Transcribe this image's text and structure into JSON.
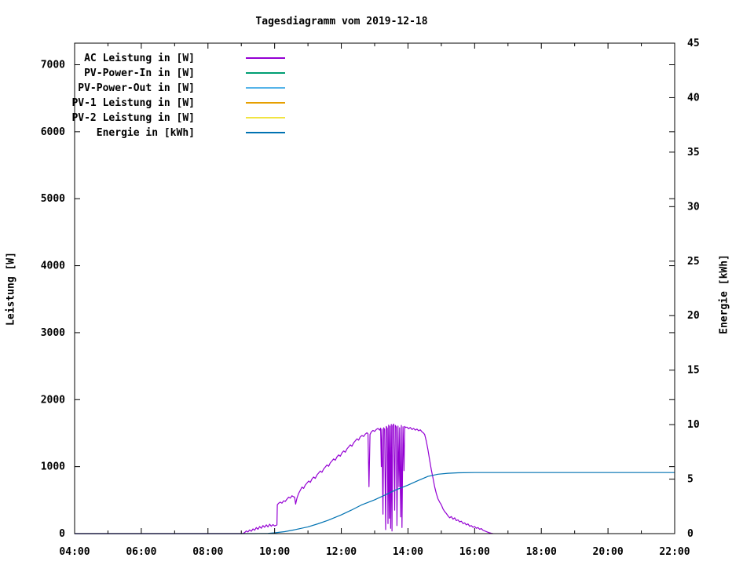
{
  "chart_data": {
    "type": "line",
    "title": "Tagesdiagramm vom 2019-12-18",
    "grid": false,
    "legend_position": "inside-top-left",
    "x_axis": {
      "min_hour": 4,
      "max_hour": 22,
      "ticks": [
        {
          "t": 4,
          "label": "04:00"
        },
        {
          "t": 6,
          "label": "06:00"
        },
        {
          "t": 8,
          "label": "08:00"
        },
        {
          "t": 10,
          "label": "10:00"
        },
        {
          "t": 12,
          "label": "12:00"
        },
        {
          "t": 14,
          "label": "14:00"
        },
        {
          "t": 16,
          "label": "16:00"
        },
        {
          "t": 18,
          "label": "18:00"
        },
        {
          "t": 20,
          "label": "20:00"
        },
        {
          "t": 22,
          "label": "22:00"
        }
      ],
      "minor_ticks": [
        5,
        7,
        9,
        11,
        13,
        15,
        17,
        19,
        21
      ]
    },
    "y_left": {
      "label": "Leistung [W]",
      "min": 0,
      "max": 7320,
      "ticks": [
        0,
        1000,
        2000,
        3000,
        4000,
        5000,
        6000,
        7000
      ]
    },
    "y_right": {
      "label": "Energie [kWh]",
      "min": 0,
      "max": 45,
      "ticks": [
        0,
        5,
        10,
        15,
        20,
        25,
        30,
        35,
        40,
        45
      ]
    },
    "legend": [
      {
        "label": "AC Leistung in [W]",
        "color": "#9400d3"
      },
      {
        "label": "PV-Power-In in [W]",
        "color": "#009e73"
      },
      {
        "label": "PV-Power-Out in [W]",
        "color": "#56b4e9"
      },
      {
        "label": "PV-1 Leistung in [W]",
        "color": "#e69f00"
      },
      {
        "label": "PV-2 Leistung in [W]",
        "color": "#f0e442"
      },
      {
        "label": "Energie in [kWh]",
        "color": "#0072b2"
      }
    ],
    "series": [
      {
        "name": "AC Leistung in [W]",
        "slug": "ac-leistung",
        "axis": "left",
        "color": "#9400d3",
        "visible": true,
        "points": [
          [
            4,
            0
          ],
          [
            9.05,
            0
          ],
          [
            9.1,
            15
          ],
          [
            9.15,
            40
          ],
          [
            9.2,
            25
          ],
          [
            9.25,
            55
          ],
          [
            9.3,
            35
          ],
          [
            9.35,
            70
          ],
          [
            9.4,
            50
          ],
          [
            9.45,
            90
          ],
          [
            9.5,
            65
          ],
          [
            9.55,
            105
          ],
          [
            9.6,
            80
          ],
          [
            9.65,
            120
          ],
          [
            9.7,
            95
          ],
          [
            9.75,
            130
          ],
          [
            9.8,
            100
          ],
          [
            9.85,
            140
          ],
          [
            9.9,
            110
          ],
          [
            9.95,
            135
          ],
          [
            10,
            115
          ],
          [
            10.05,
            125
          ],
          [
            10.07,
            130
          ],
          [
            10.08,
            430
          ],
          [
            10.12,
            455
          ],
          [
            10.17,
            470
          ],
          [
            10.22,
            455
          ],
          [
            10.27,
            490
          ],
          [
            10.32,
            480
          ],
          [
            10.37,
            515
          ],
          [
            10.42,
            545
          ],
          [
            10.47,
            530
          ],
          [
            10.52,
            565
          ],
          [
            10.57,
            550
          ],
          [
            10.6,
            545
          ],
          [
            10.63,
            440
          ],
          [
            10.67,
            530
          ],
          [
            10.72,
            600
          ],
          [
            10.77,
            645
          ],
          [
            10.82,
            695
          ],
          [
            10.87,
            675
          ],
          [
            10.92,
            725
          ],
          [
            10.97,
            755
          ],
          [
            11.02,
            785
          ],
          [
            11.07,
            765
          ],
          [
            11.12,
            815
          ],
          [
            11.17,
            845
          ],
          [
            11.22,
            825
          ],
          [
            11.27,
            875
          ],
          [
            11.32,
            905
          ],
          [
            11.37,
            935
          ],
          [
            11.42,
            915
          ],
          [
            11.47,
            965
          ],
          [
            11.52,
            995
          ],
          [
            11.57,
            1025
          ],
          [
            11.62,
            1005
          ],
          [
            11.67,
            1055
          ],
          [
            11.72,
            1085
          ],
          [
            11.77,
            1115
          ],
          [
            11.82,
            1095
          ],
          [
            11.87,
            1145
          ],
          [
            11.92,
            1175
          ],
          [
            11.97,
            1155
          ],
          [
            12.02,
            1205
          ],
          [
            12.07,
            1235
          ],
          [
            12.12,
            1215
          ],
          [
            12.17,
            1265
          ],
          [
            12.22,
            1295
          ],
          [
            12.27,
            1325
          ],
          [
            12.32,
            1305
          ],
          [
            12.37,
            1355
          ],
          [
            12.42,
            1385
          ],
          [
            12.47,
            1415
          ],
          [
            12.52,
            1395
          ],
          [
            12.57,
            1445
          ],
          [
            12.62,
            1465
          ],
          [
            12.67,
            1450
          ],
          [
            12.72,
            1485
          ],
          [
            12.77,
            1505
          ],
          [
            12.8,
            1490
          ],
          [
            12.83,
            700
          ],
          [
            12.86,
            1480
          ],
          [
            12.9,
            1520
          ],
          [
            12.95,
            1540
          ],
          [
            13,
            1525
          ],
          [
            13.05,
            1555
          ],
          [
            13.1,
            1570
          ],
          [
            13.15,
            1545
          ],
          [
            13.18,
            1575
          ],
          [
            13.2,
            1000
          ],
          [
            13.22,
            1560
          ],
          [
            13.25,
            290
          ],
          [
            13.27,
            1580
          ],
          [
            13.3,
            1555
          ],
          [
            13.33,
            60
          ],
          [
            13.35,
            1600
          ],
          [
            13.38,
            1570
          ],
          [
            13.4,
            150
          ],
          [
            13.42,
            1620
          ],
          [
            13.44,
            230
          ],
          [
            13.46,
            1605
          ],
          [
            13.48,
            80
          ],
          [
            13.5,
            1630
          ],
          [
            13.52,
            40
          ],
          [
            13.54,
            1610
          ],
          [
            13.57,
            1635
          ],
          [
            13.6,
            350
          ],
          [
            13.62,
            1615
          ],
          [
            13.65,
            1590
          ],
          [
            13.67,
            120
          ],
          [
            13.7,
            1605
          ],
          [
            13.73,
            700
          ],
          [
            13.75,
            1580
          ],
          [
            13.78,
            250
          ],
          [
            13.8,
            1615
          ],
          [
            13.82,
            90
          ],
          [
            13.85,
            1595
          ],
          [
            13.88,
            940
          ],
          [
            13.9,
            1600
          ],
          [
            13.93,
            1585
          ],
          [
            13.97,
            1590
          ],
          [
            14.02,
            1565
          ],
          [
            14.07,
            1585
          ],
          [
            14.12,
            1555
          ],
          [
            14.17,
            1570
          ],
          [
            14.22,
            1545
          ],
          [
            14.27,
            1560
          ],
          [
            14.32,
            1535
          ],
          [
            14.37,
            1550
          ],
          [
            14.42,
            1520
          ],
          [
            14.47,
            1500
          ],
          [
            14.5,
            1480
          ],
          [
            14.55,
            1380
          ],
          [
            14.6,
            1250
          ],
          [
            14.65,
            1100
          ],
          [
            14.7,
            950
          ],
          [
            14.75,
            830
          ],
          [
            14.8,
            700
          ],
          [
            14.85,
            600
          ],
          [
            14.9,
            520
          ],
          [
            14.95,
            470
          ],
          [
            15,
            430
          ],
          [
            15.05,
            370
          ],
          [
            15.1,
            330
          ],
          [
            15.15,
            300
          ],
          [
            15.2,
            265
          ],
          [
            15.25,
            235
          ],
          [
            15.3,
            255
          ],
          [
            15.35,
            215
          ],
          [
            15.4,
            235
          ],
          [
            15.45,
            195
          ],
          [
            15.5,
            205
          ],
          [
            15.55,
            175
          ],
          [
            15.6,
            185
          ],
          [
            15.65,
            150
          ],
          [
            15.7,
            160
          ],
          [
            15.75,
            130
          ],
          [
            15.8,
            145
          ],
          [
            15.85,
            110
          ],
          [
            15.9,
            120
          ],
          [
            15.95,
            95
          ],
          [
            16,
            105
          ],
          [
            16.05,
            80
          ],
          [
            16.1,
            90
          ],
          [
            16.15,
            65
          ],
          [
            16.2,
            75
          ],
          [
            16.25,
            50
          ],
          [
            16.3,
            40
          ],
          [
            16.35,
            30
          ],
          [
            16.4,
            20
          ],
          [
            16.45,
            12
          ],
          [
            16.5,
            5
          ],
          [
            16.55,
            0
          ]
        ]
      },
      {
        "name": "PV-Power-In in [W]",
        "slug": "pv-power-in",
        "axis": "left",
        "color": "#009e73",
        "visible": false,
        "points": []
      },
      {
        "name": "PV-Power-Out in [W]",
        "slug": "pv-power-out",
        "axis": "left",
        "color": "#56b4e9",
        "visible": false,
        "points": []
      },
      {
        "name": "PV-1 Leistung in [W]",
        "slug": "pv-1-leistung",
        "axis": "left",
        "color": "#e69f00",
        "visible": false,
        "points": []
      },
      {
        "name": "PV-2 Leistung in [W]",
        "slug": "pv-2-leistung",
        "axis": "left",
        "color": "#f0e442",
        "visible": false,
        "points": []
      },
      {
        "name": "Energie in [kWh]",
        "slug": "energie",
        "axis": "right",
        "color": "#0072b2",
        "visible": true,
        "points": [
          [
            4,
            0
          ],
          [
            9.4,
            0
          ],
          [
            9.8,
            0.02
          ],
          [
            10,
            0.07
          ],
          [
            10.3,
            0.18
          ],
          [
            10.6,
            0.35
          ],
          [
            11,
            0.62
          ],
          [
            11.3,
            0.9
          ],
          [
            11.6,
            1.22
          ],
          [
            12,
            1.72
          ],
          [
            12.3,
            2.15
          ],
          [
            12.6,
            2.62
          ],
          [
            13,
            3.1
          ],
          [
            13.3,
            3.52
          ],
          [
            13.6,
            3.97
          ],
          [
            14,
            4.45
          ],
          [
            14.3,
            4.87
          ],
          [
            14.6,
            5.25
          ],
          [
            14.9,
            5.45
          ],
          [
            15.2,
            5.54
          ],
          [
            15.5,
            5.58
          ],
          [
            16,
            5.6
          ],
          [
            17,
            5.6
          ],
          [
            22,
            5.6
          ]
        ]
      }
    ]
  }
}
